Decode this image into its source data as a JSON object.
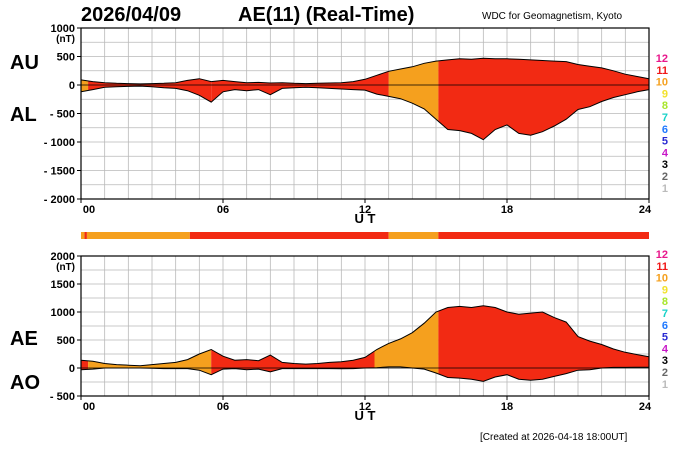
{
  "header": {
    "date": "2026/04/09",
    "title": "AE(11) (Real-Time)",
    "credit": "WDC for Geomagnetism, Kyoto",
    "created": "[Created at 2026-04-18 18:00UT]"
  },
  "colors": {
    "orange": "#f5a01e",
    "red": "#f22a13",
    "strip": "#f22a13"
  },
  "legend_levels": [
    {
      "label": "12",
      "color": "#e8188c"
    },
    {
      "label": "11",
      "color": "#f01818"
    },
    {
      "label": "10",
      "color": "#f5a01e"
    },
    {
      "label": "9",
      "color": "#f2e12a"
    },
    {
      "label": "8",
      "color": "#a8e62a"
    },
    {
      "label": "7",
      "color": "#18d2c8"
    },
    {
      "label": "6",
      "color": "#1e78ff"
    },
    {
      "label": "5",
      "color": "#2a2ad2"
    },
    {
      "label": "4",
      "color": "#c818c8"
    },
    {
      "label": "3",
      "color": "#000000"
    },
    {
      "label": "2",
      "color": "#666666"
    },
    {
      "label": "1",
      "color": "#bbbbbb"
    }
  ],
  "strip": [
    {
      "from": 0.0,
      "to": 0.15,
      "color": "#f5a01e"
    },
    {
      "from": 0.15,
      "to": 0.25,
      "color": "#f22a13"
    },
    {
      "from": 0.25,
      "to": 4.6,
      "color": "#f5a01e"
    },
    {
      "from": 4.6,
      "to": 13.0,
      "color": "#f22a13"
    },
    {
      "from": 13.0,
      "to": 15.1,
      "color": "#f5a01e"
    },
    {
      "from": 15.1,
      "to": 24.0,
      "color": "#f22a13"
    }
  ],
  "chart_data": [
    {
      "type": "area",
      "panel": "AU/AL",
      "left_labels": [
        "AU",
        "AL"
      ],
      "unit": "(nT)",
      "xlabel": "U T",
      "xlim": [
        0,
        24
      ],
      "ylim": [
        -2000,
        1000
      ],
      "yticks": [
        1000,
        500,
        0,
        -500,
        -1000,
        -1500,
        -2000
      ],
      "ytick_labels": [
        "1000",
        "500",
        "0",
        "- 500",
        "- 1000",
        "- 1500",
        "- 2000"
      ],
      "xticks": [
        0,
        6,
        12,
        18,
        24
      ],
      "xtick_labels": [
        "00",
        "06",
        "12",
        "18",
        "24"
      ],
      "grid": true,
      "segments": [
        {
          "from": 0,
          "to": 0.3,
          "color": "#f5a01e"
        },
        {
          "from": 0.3,
          "to": 5.5,
          "color": "#f22a13"
        },
        {
          "from": 5.5,
          "to": 13.0,
          "color": "#f22a13"
        },
        {
          "from": 13.0,
          "to": 15.1,
          "color": "#f5a01e"
        },
        {
          "from": 15.1,
          "to": 24,
          "color": "#f22a13"
        }
      ],
      "x": [
        0.0,
        0.5,
        1.0,
        1.5,
        2.0,
        2.5,
        3.0,
        3.5,
        4.0,
        4.5,
        5.0,
        5.5,
        6.0,
        6.5,
        7.0,
        7.5,
        8.0,
        8.5,
        9.0,
        9.5,
        10.0,
        10.5,
        11.0,
        11.5,
        12.0,
        12.5,
        13.0,
        13.5,
        14.0,
        14.5,
        15.0,
        15.5,
        16.0,
        16.5,
        17.0,
        17.5,
        18.0,
        18.5,
        19.0,
        19.5,
        20.0,
        20.5,
        21.0,
        21.5,
        22.0,
        22.5,
        23.0,
        23.5,
        24.0
      ],
      "series": [
        {
          "name": "AU",
          "values": [
            90,
            60,
            40,
            30,
            25,
            20,
            25,
            30,
            40,
            80,
            110,
            60,
            80,
            60,
            40,
            45,
            35,
            40,
            30,
            25,
            30,
            35,
            40,
            60,
            100,
            170,
            240,
            280,
            320,
            380,
            420,
            440,
            460,
            450,
            470,
            460,
            460,
            450,
            440,
            430,
            420,
            410,
            360,
            330,
            300,
            250,
            190,
            150,
            110
          ]
        },
        {
          "name": "AL",
          "values": [
            -120,
            -80,
            -40,
            -30,
            -25,
            -20,
            -30,
            -50,
            -60,
            -100,
            -180,
            -300,
            -120,
            -80,
            -100,
            -80,
            -170,
            -60,
            -50,
            -40,
            -50,
            -60,
            -70,
            -80,
            -90,
            -160,
            -200,
            -240,
            -320,
            -420,
            -600,
            -780,
            -800,
            -850,
            -960,
            -780,
            -700,
            -850,
            -880,
            -820,
            -720,
            -600,
            -430,
            -380,
            -290,
            -220,
            -170,
            -120,
            -80
          ]
        }
      ]
    },
    {
      "type": "area",
      "panel": "AE/AO",
      "left_labels": [
        "AE",
        "AO"
      ],
      "unit": "(nT)",
      "xlabel": "U T",
      "xlim": [
        0,
        24
      ],
      "ylim": [
        -500,
        2000
      ],
      "yticks": [
        2000,
        1500,
        1000,
        500,
        0,
        -500
      ],
      "ytick_labels": [
        "2000",
        "1500",
        "1000",
        "500",
        "0",
        "- 500"
      ],
      "xticks": [
        0,
        6,
        12,
        18,
        24
      ],
      "xtick_labels": [
        "00",
        "06",
        "12",
        "18",
        "24"
      ],
      "grid": true,
      "segments": [
        {
          "from": 0,
          "to": 0.3,
          "color": "#f22a13"
        },
        {
          "from": 0.3,
          "to": 5.5,
          "color": "#f5a01e"
        },
        {
          "from": 5.5,
          "to": 12.4,
          "color": "#f22a13"
        },
        {
          "from": 12.4,
          "to": 15.1,
          "color": "#f5a01e"
        },
        {
          "from": 15.1,
          "to": 24,
          "color": "#f22a13"
        }
      ],
      "x": [
        0.0,
        0.5,
        1.0,
        1.5,
        2.0,
        2.5,
        3.0,
        3.5,
        4.0,
        4.5,
        5.0,
        5.5,
        6.0,
        6.5,
        7.0,
        7.5,
        8.0,
        8.5,
        9.0,
        9.5,
        10.0,
        10.5,
        11.0,
        11.5,
        12.0,
        12.5,
        13.0,
        13.5,
        14.0,
        14.5,
        15.0,
        15.5,
        16.0,
        16.5,
        17.0,
        17.5,
        18.0,
        18.5,
        19.0,
        19.5,
        20.0,
        20.5,
        21.0,
        21.5,
        22.0,
        22.5,
        23.0,
        23.5,
        24.0
      ],
      "series": [
        {
          "name": "AE",
          "values": [
            140,
            120,
            80,
            60,
            50,
            40,
            60,
            80,
            100,
            150,
            250,
            330,
            210,
            140,
            150,
            130,
            230,
            100,
            80,
            70,
            80,
            100,
            110,
            140,
            190,
            330,
            440,
            520,
            630,
            800,
            1000,
            1080,
            1100,
            1080,
            1110,
            1080,
            1000,
            960,
            980,
            1000,
            900,
            820,
            560,
            480,
            420,
            340,
            280,
            240,
            200
          ]
        },
        {
          "name": "AO",
          "values": [
            -30,
            -20,
            0,
            0,
            0,
            0,
            -5,
            -10,
            -10,
            -10,
            -40,
            -120,
            -20,
            -10,
            -30,
            -20,
            -70,
            -10,
            -10,
            -10,
            -10,
            -10,
            -15,
            -10,
            0,
            5,
            20,
            20,
            0,
            -20,
            -90,
            -170,
            -180,
            -200,
            -240,
            -160,
            -120,
            -200,
            -220,
            -200,
            -150,
            -100,
            -40,
            -30,
            0,
            10,
            10,
            15,
            15
          ]
        }
      ]
    }
  ]
}
